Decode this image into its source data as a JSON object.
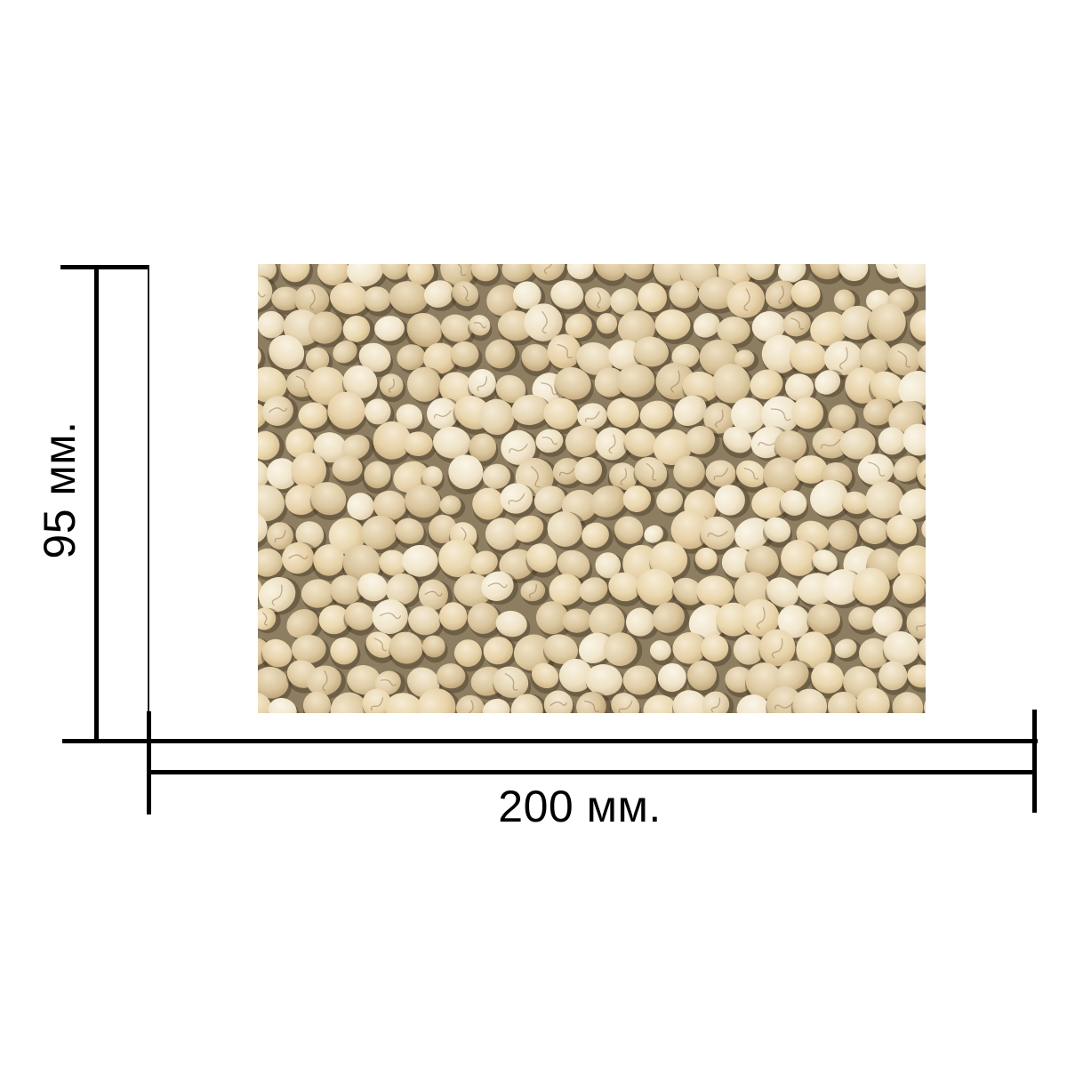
{
  "dimensions": {
    "height_label": "95 мм.",
    "width_label": "200 мм."
  },
  "photo": {
    "subject": "soybeans",
    "colors": {
      "shadow_background": "#8d7d61",
      "bean_contact_shadow": "rgba(62,48,30,0.40)",
      "crack_line": "rgba(146,108,66,0.50)",
      "bean_palettes": [
        [
          "#f9f2e2",
          "#eee1c3",
          "#cfb68e"
        ],
        [
          "#f4ebd6",
          "#e5d4b0",
          "#c3a97e"
        ],
        [
          "#f6ecd6",
          "#ead7ae",
          "#c9ad7c"
        ],
        [
          "#f0e3c8",
          "#ddc9a1",
          "#b99e72"
        ],
        [
          "#faf5e8",
          "#f1e6cc",
          "#d6bf96"
        ],
        [
          "#f2e5cb",
          "#e0cda6",
          "#bfa375"
        ],
        [
          "#f5e9d0",
          "#e7d2a9",
          "#c6a878"
        ],
        [
          "#eee0c4",
          "#d9c49b",
          "#b3976b"
        ]
      ]
    }
  },
  "style": {
    "line_color": "#000000",
    "text_color": "#000000",
    "page_background": "#ffffff"
  }
}
